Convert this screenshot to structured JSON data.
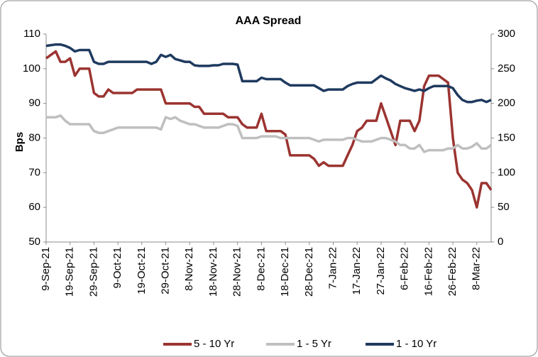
{
  "chart_data": {
    "type": "line",
    "title": "AAA Spread",
    "ylabel": "Bps",
    "categories": [
      "9-Sep-21",
      null,
      null,
      null,
      null,
      "19-Sep-21",
      null,
      null,
      null,
      null,
      "29-Sep-21",
      null,
      null,
      null,
      null,
      "9-Oct-21",
      null,
      null,
      null,
      null,
      "19-Oct-21",
      null,
      null,
      null,
      null,
      "29-Oct-21",
      null,
      null,
      null,
      null,
      "8-Nov-21",
      null,
      null,
      null,
      null,
      "18-Nov-21",
      null,
      null,
      null,
      null,
      "28-Nov-21",
      null,
      null,
      null,
      null,
      "8-Dec-21",
      null,
      null,
      null,
      null,
      "18-Dec-21",
      null,
      null,
      null,
      null,
      "28-Dec-21",
      null,
      null,
      null,
      null,
      "7-Jan-22",
      null,
      null,
      null,
      null,
      "17-Jan-22",
      null,
      null,
      null,
      null,
      "27-Jan-22",
      null,
      null,
      null,
      null,
      "6-Feb-22",
      null,
      null,
      null,
      null,
      "16-Feb-22",
      null,
      null,
      null,
      null,
      "26-Feb-22",
      null,
      null,
      null,
      null,
      "8-Mar-22",
      null,
      null,
      null
    ],
    "series": [
      {
        "name": "5 - 10 Yr",
        "color": "#9b3431",
        "values": [
          103,
          104,
          105,
          102,
          102,
          103,
          98,
          100,
          100,
          100,
          93,
          92,
          92,
          94,
          93,
          93,
          93,
          93,
          93,
          94,
          94,
          94,
          94,
          94,
          94,
          90,
          90,
          90,
          90,
          90,
          90,
          89,
          89,
          87,
          87,
          87,
          87,
          87,
          86,
          86,
          86,
          84,
          83,
          83,
          83,
          87,
          82,
          82,
          82,
          82,
          81,
          75,
          75,
          75,
          75,
          75,
          74,
          72,
          73,
          72,
          72,
          72,
          72,
          75,
          78,
          82,
          83,
          85,
          85,
          85,
          90,
          86,
          82,
          78,
          85,
          85,
          85,
          82,
          85,
          95,
          98,
          98,
          98,
          97,
          96,
          80,
          70,
          68,
          67,
          65,
          60,
          67,
          67,
          65
        ]
      },
      {
        "name": "1 - 5 Yr",
        "color": "#bfbfbf",
        "values": [
          86,
          86,
          86,
          86.5,
          85,
          84,
          84,
          84,
          84,
          84,
          82,
          81.5,
          81.5,
          82,
          82.5,
          83,
          83,
          83,
          83,
          83,
          83,
          83,
          83,
          83,
          82.5,
          86,
          85.5,
          86,
          85,
          84.5,
          84,
          84,
          83.5,
          83,
          83,
          83,
          83,
          83.5,
          84,
          84,
          83.5,
          80,
          80,
          80,
          80,
          80.5,
          80.5,
          80.5,
          80.5,
          80,
          80,
          80,
          80,
          80,
          80,
          80,
          79.5,
          79,
          79.5,
          79.5,
          79.5,
          79.5,
          79.5,
          80,
          80,
          79.5,
          79,
          79,
          79,
          79.5,
          80,
          80,
          79.5,
          79,
          78,
          78,
          77,
          77,
          78,
          76,
          76.5,
          76.5,
          76.5,
          76.5,
          77,
          77,
          78,
          77,
          77,
          77.5,
          78.5,
          77,
          77,
          78
        ]
      },
      {
        "name": "1 - 10 Yr",
        "color": "#1f3a5f",
        "axis": "y2",
        "values": [
          283,
          284,
          285,
          285,
          283,
          280,
          275,
          277,
          277,
          277,
          260,
          257,
          257,
          260,
          260,
          260,
          260,
          260,
          260,
          260,
          260,
          260,
          257,
          260,
          270,
          267,
          270,
          264,
          262,
          260,
          260,
          255,
          254,
          254,
          254,
          255,
          255,
          257,
          257,
          257,
          256,
          232,
          232,
          232,
          232,
          237,
          235,
          235,
          235,
          235,
          230,
          226,
          226,
          226,
          226,
          226,
          226,
          222,
          218,
          220,
          220,
          220,
          220,
          225,
          228,
          230,
          230,
          230,
          230,
          235,
          240,
          236,
          233,
          228,
          225,
          222,
          220,
          218,
          220,
          218,
          222,
          225,
          225,
          225,
          225,
          222,
          212,
          205,
          202,
          202,
          204,
          205,
          202,
          205
        ]
      }
    ],
    "ylim": [
      50,
      110
    ],
    "yticks": [
      50,
      60,
      70,
      80,
      90,
      100,
      110
    ],
    "y2lim": [
      0,
      300
    ],
    "y2ticks": [
      0,
      50,
      100,
      150,
      200,
      250,
      300
    ],
    "legend": "bottom"
  }
}
